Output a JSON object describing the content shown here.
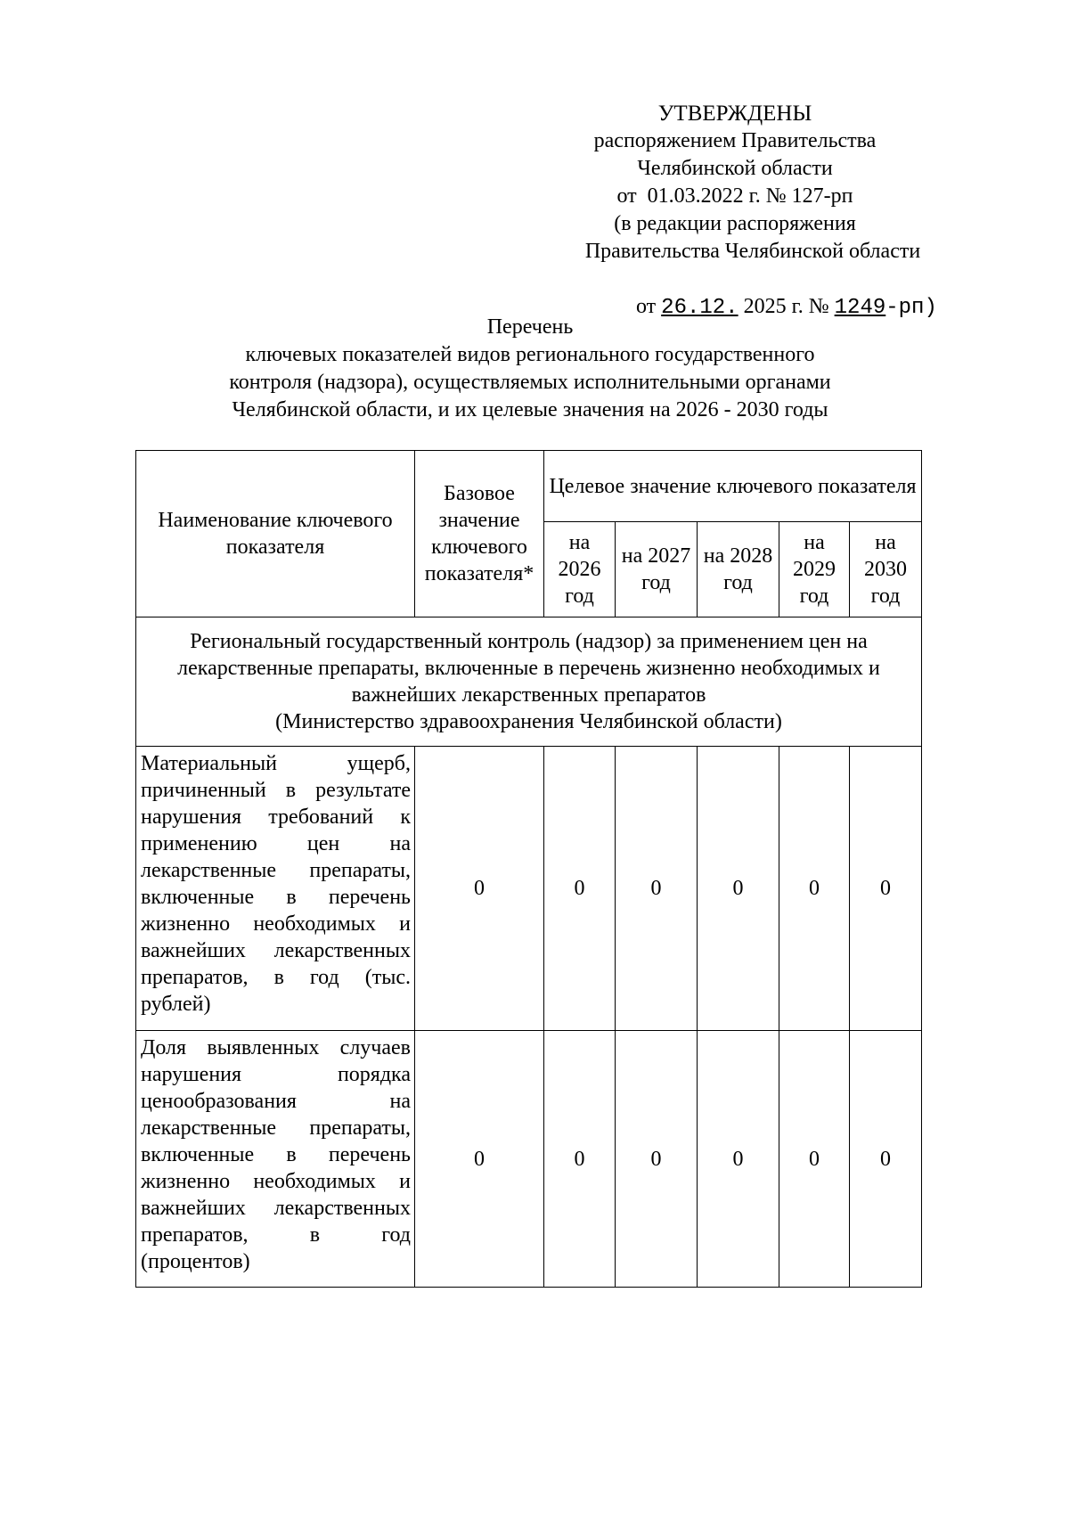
{
  "approval": {
    "heading": "УТВЕРЖДЕНЫ",
    "lines": [
      "распоряжением Правительства",
      "Челябинской области",
      "от  01.03.2022 г. № 127-рп",
      "(в редакции распоряжения",
      "Правительства Челябинской области"
    ],
    "amend_prefix": "от ",
    "amend_date": "26.12.",
    "amend_year": " 2025 г. № ",
    "amend_number": "1249",
    "amend_suffix": "-рп)"
  },
  "title": {
    "line1": "Перечень",
    "line2": "ключевых показателей видов регионального государственного",
    "line3": "контроля (надзора), осуществляемых исполнительными органами",
    "line4": "Челябинской области, и их целевые значения на 2026 - 2030 годы"
  },
  "table": {
    "headers": {
      "name": "Наименование ключевого показателя",
      "base": "Базовое значение ключевого показателя*",
      "target": "Целевое значение ключевого показателя",
      "years": [
        "на 2026 год",
        "на 2027 год",
        "на 2028 год",
        "на 2029 год",
        "на 2030 год"
      ]
    },
    "section": {
      "title": "Региональный государственный контроль (надзор) за применением цен на лекарственные препараты, включенные в перечень жизненно необходимых и важнейших лекарственных препаратов",
      "authority": "(Министерство здравоохранения Челябинской области)"
    },
    "rows": [
      {
        "name": "Материальный ущерб, причиненный в результате нарушения требований к применению цен на лекарственные препараты, включенные в перечень жизненно необходимых и важнейших лекарственных препаратов, в год (тыс. рублей)",
        "values": [
          "0",
          "0",
          "0",
          "0",
          "0",
          "0"
        ]
      },
      {
        "name": "Доля выявленных случаев нарушения порядка ценообразования на лекарственные препараты, включенные в перечень жизненно необходимых и важнейших лекарственных препаратов, в год (процентов)",
        "values": [
          "0",
          "0",
          "0",
          "0",
          "0",
          "0"
        ]
      }
    ]
  }
}
